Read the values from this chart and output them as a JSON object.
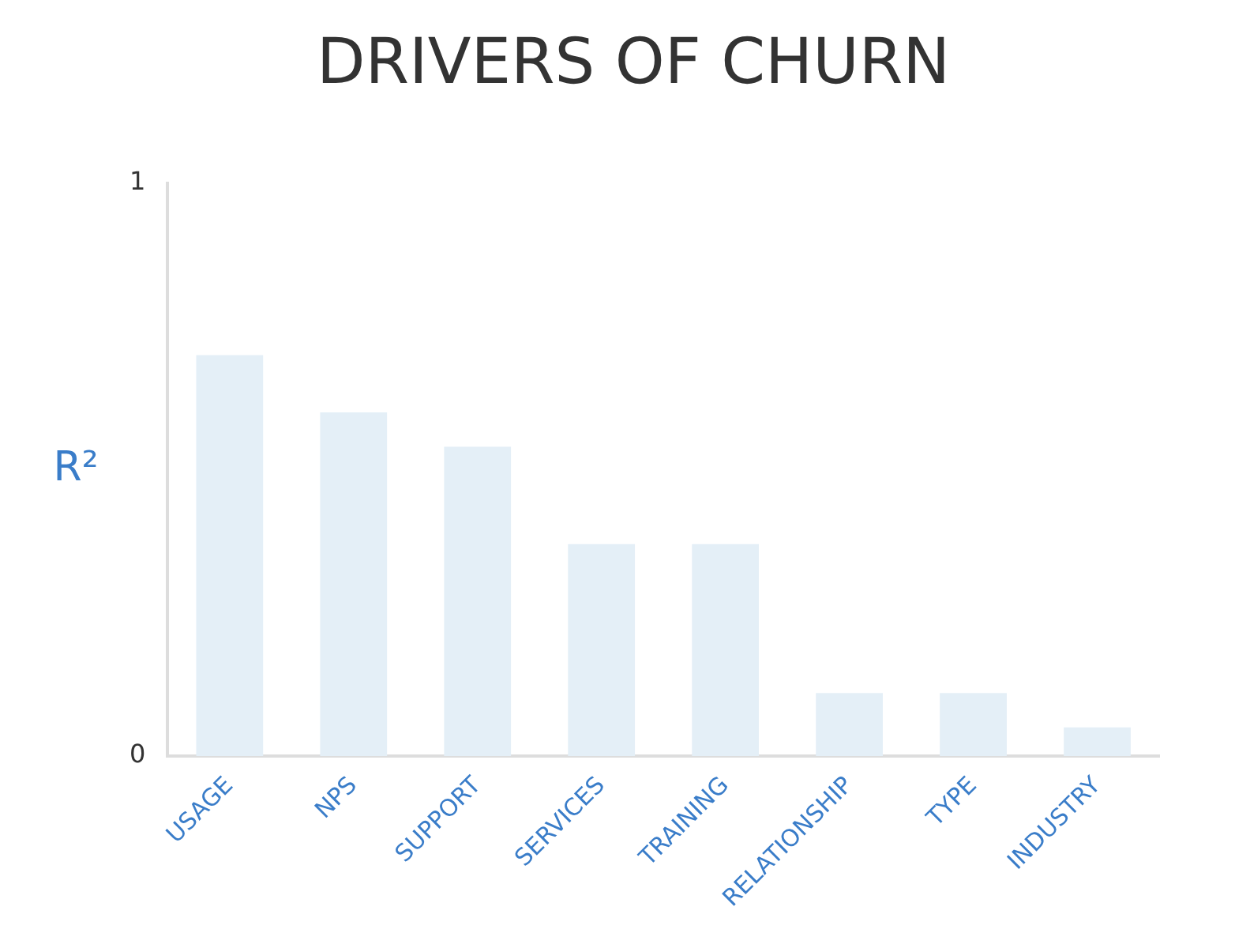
{
  "chart_data": {
    "type": "bar",
    "title": "DRIVERS OF CHURN",
    "ylabel": "R²",
    "categories": [
      "USAGE",
      "NPS",
      "SUPPORT",
      "SERVICES",
      "TRAINING",
      "RELATIONSHIP",
      "TYPE",
      "INDUSTRY"
    ],
    "values": [
      0.7,
      0.6,
      0.54,
      0.37,
      0.37,
      0.11,
      0.11,
      0.05
    ],
    "color": "#e4eff7",
    "ylim": [
      0,
      1
    ],
    "yticks": [
      0,
      1
    ],
    "grid": false,
    "legend": false
  }
}
